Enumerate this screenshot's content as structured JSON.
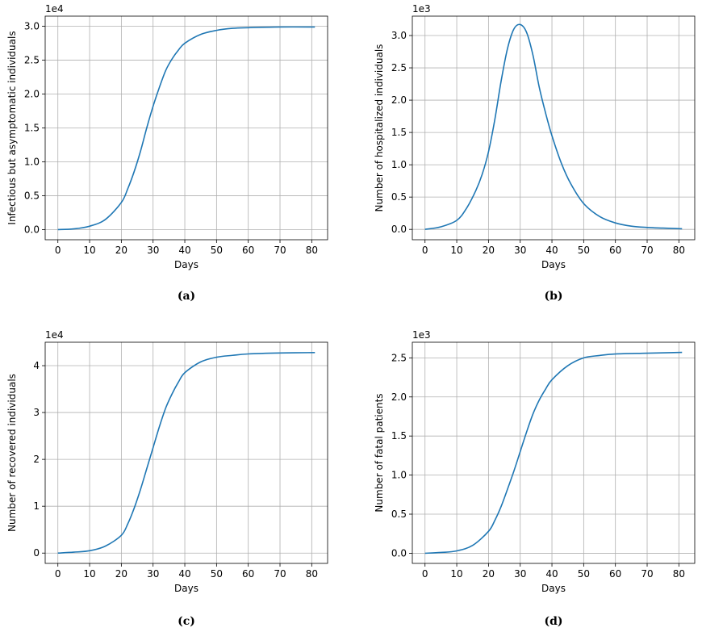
{
  "chart_data": [
    {
      "type": "line",
      "panel_label": "(a)",
      "xlabel": "Days",
      "ylabel": "Infectious but asymptomatic individuals",
      "y_multiplier": "1e4",
      "xlim": [
        -4,
        85
      ],
      "ylim": [
        -0.15,
        3.15
      ],
      "xticks": [
        0,
        10,
        20,
        30,
        40,
        50,
        60,
        70,
        80
      ],
      "yticks": [
        0.0,
        0.5,
        1.0,
        1.5,
        2.0,
        2.5,
        3.0
      ],
      "ytick_labels": [
        "0.0",
        "0.5",
        "1.0",
        "1.5",
        "2.0",
        "2.5",
        "3.0"
      ],
      "grid": true,
      "series": [
        {
          "color": "#1f77b4",
          "x": [
            0,
            5,
            10,
            15,
            20,
            22,
            24,
            26,
            28,
            30,
            32,
            34,
            36,
            38,
            40,
            45,
            50,
            55,
            60,
            70,
            81
          ],
          "y": [
            0.0,
            0.01,
            0.05,
            0.15,
            0.4,
            0.6,
            0.85,
            1.15,
            1.5,
            1.82,
            2.1,
            2.35,
            2.52,
            2.65,
            2.75,
            2.88,
            2.94,
            2.97,
            2.98,
            2.99,
            2.99
          ]
        }
      ]
    },
    {
      "type": "line",
      "panel_label": "(b)",
      "xlabel": "Days",
      "ylabel": "Number of hospitalized individuals",
      "y_multiplier": "1e3",
      "xlim": [
        -4,
        85
      ],
      "ylim": [
        -0.16,
        3.3
      ],
      "xticks": [
        0,
        10,
        20,
        30,
        40,
        50,
        60,
        70,
        80
      ],
      "yticks": [
        0.0,
        0.5,
        1.0,
        1.5,
        2.0,
        2.5,
        3.0
      ],
      "ytick_labels": [
        "0.0",
        "0.5",
        "1.0",
        "1.5",
        "2.0",
        "2.5",
        "3.0"
      ],
      "grid": true,
      "series": [
        {
          "color": "#1f77b4",
          "x": [
            0,
            5,
            10,
            13,
            16,
            18,
            20,
            22,
            24,
            26,
            28,
            30,
            32,
            34,
            36,
            38,
            40,
            43,
            46,
            50,
            55,
            60,
            65,
            70,
            75,
            81
          ],
          "y": [
            0.0,
            0.04,
            0.14,
            0.32,
            0.6,
            0.85,
            1.2,
            1.7,
            2.3,
            2.8,
            3.1,
            3.17,
            3.05,
            2.7,
            2.2,
            1.8,
            1.45,
            1.02,
            0.7,
            0.4,
            0.2,
            0.1,
            0.05,
            0.03,
            0.02,
            0.01
          ]
        }
      ]
    },
    {
      "type": "line",
      "panel_label": "(c)",
      "xlabel": "Days",
      "ylabel": "Number of recovered individuals",
      "y_multiplier": "1e4",
      "xlim": [
        -4,
        85
      ],
      "ylim": [
        -0.22,
        4.5
      ],
      "xticks": [
        0,
        10,
        20,
        30,
        40,
        50,
        60,
        70,
        80
      ],
      "yticks": [
        0,
        1,
        2,
        3,
        4
      ],
      "ytick_labels": [
        "0",
        "1",
        "2",
        "3",
        "4"
      ],
      "grid": true,
      "series": [
        {
          "color": "#1f77b4",
          "x": [
            0,
            5,
            10,
            15,
            20,
            22,
            24,
            26,
            28,
            30,
            32,
            34,
            36,
            38,
            40,
            45,
            50,
            55,
            60,
            70,
            81
          ],
          "y": [
            0.0,
            0.02,
            0.05,
            0.15,
            0.38,
            0.62,
            0.95,
            1.35,
            1.8,
            2.25,
            2.7,
            3.1,
            3.4,
            3.65,
            3.85,
            4.08,
            4.18,
            4.22,
            4.25,
            4.27,
            4.28
          ]
        }
      ]
    },
    {
      "type": "line",
      "panel_label": "(d)",
      "xlabel": "Days",
      "ylabel": "Number of fatal patients",
      "y_multiplier": "1e3",
      "xlim": [
        -4,
        85
      ],
      "ylim": [
        -0.13,
        2.7
      ],
      "xticks": [
        0,
        10,
        20,
        30,
        40,
        50,
        60,
        70,
        80
      ],
      "yticks": [
        0.0,
        0.5,
        1.0,
        1.5,
        2.0,
        2.5
      ],
      "ytick_labels": [
        "0.0",
        "0.5",
        "1.0",
        "1.5",
        "2.0",
        "2.5"
      ],
      "grid": true,
      "series": [
        {
          "color": "#1f77b4",
          "x": [
            0,
            5,
            10,
            15,
            20,
            22,
            24,
            26,
            28,
            30,
            32,
            34,
            36,
            38,
            40,
            45,
            50,
            55,
            60,
            70,
            81
          ],
          "y": [
            0.0,
            0.01,
            0.03,
            0.1,
            0.28,
            0.42,
            0.6,
            0.82,
            1.05,
            1.3,
            1.55,
            1.78,
            1.96,
            2.1,
            2.22,
            2.4,
            2.5,
            2.53,
            2.55,
            2.56,
            2.57
          ]
        }
      ]
    }
  ]
}
